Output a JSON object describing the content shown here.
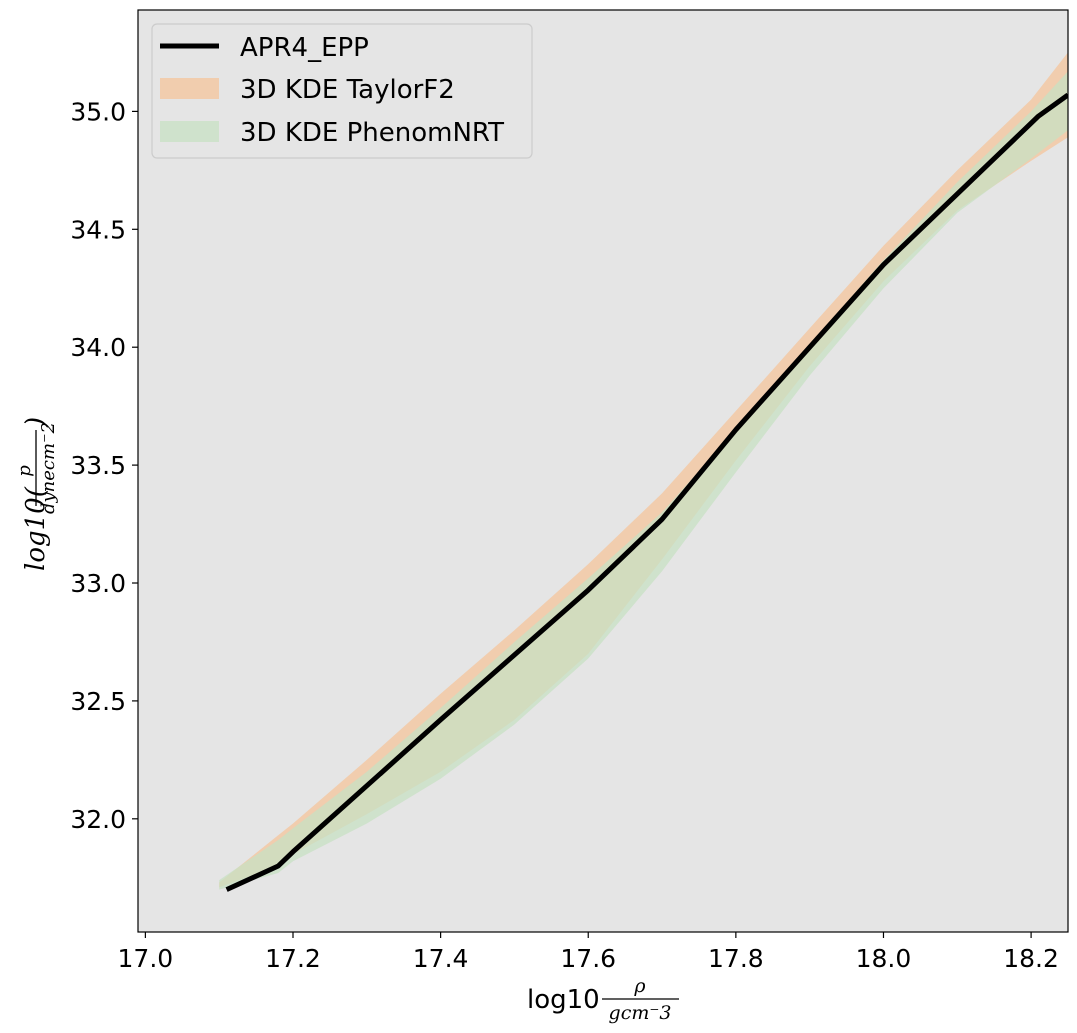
{
  "chart_data": {
    "type": "area",
    "title": "",
    "x_axis": {
      "range": [
        16.99,
        18.25
      ],
      "ticks": [
        17.0,
        17.2,
        17.4,
        17.6,
        17.8,
        18.0,
        18.2
      ],
      "tick_labels": [
        "17.0",
        "17.2",
        "17.4",
        "17.6",
        "17.8",
        "18.0",
        "18.2"
      ],
      "label": {
        "prefix": "log10",
        "numerator": "ρ",
        "denominator": "gcm⁻3"
      }
    },
    "y_axis": {
      "range": [
        31.52,
        35.43
      ],
      "ticks": [
        32.0,
        32.5,
        33.0,
        33.5,
        34.0,
        34.5,
        35.0
      ],
      "tick_labels": [
        "32.0",
        "32.5",
        "33.0",
        "33.5",
        "34.0",
        "34.5",
        "35.0"
      ],
      "label": {
        "prefix": "log10(",
        "numerator": "p",
        "denominator": "dynecm⁻2",
        "suffix": ")"
      }
    },
    "grid": false,
    "background": "#e5e5e5",
    "legend": {
      "placement": "top-left",
      "entries": [
        {
          "label": "APR4_EPP",
          "kind": "line",
          "color": "#000000"
        },
        {
          "label": "3D KDE TaylorF2",
          "kind": "band",
          "color": "#f4c49b"
        },
        {
          "label": "3D KDE PhenomNRT",
          "kind": "band",
          "color": "#c7e0c3"
        }
      ]
    },
    "series": [
      {
        "name": "APR4_EPP",
        "kind": "line",
        "color": "#000000",
        "x": [
          17.11,
          17.18,
          17.2,
          17.4,
          17.6,
          17.7,
          17.8,
          17.9,
          18.0,
          18.15,
          18.21,
          18.25
        ],
        "y": [
          31.7,
          31.8,
          31.86,
          32.42,
          32.97,
          33.27,
          33.65,
          34.0,
          34.35,
          34.8,
          34.98,
          35.07
        ]
      },
      {
        "name": "3D KDE TaylorF2",
        "kind": "band",
        "color": "#f4c49b",
        "opacity": 0.75,
        "x": [
          17.1,
          17.18,
          17.2,
          17.3,
          17.4,
          17.5,
          17.6,
          17.7,
          17.8,
          17.9,
          18.0,
          18.1,
          18.2,
          18.25
        ],
        "upper": [
          31.73,
          31.93,
          31.98,
          32.25,
          32.53,
          32.8,
          33.08,
          33.38,
          33.73,
          34.08,
          34.43,
          34.75,
          35.05,
          35.25
        ],
        "lower": [
          31.71,
          31.8,
          31.85,
          32.02,
          32.2,
          32.42,
          32.7,
          33.1,
          33.52,
          33.92,
          34.28,
          34.58,
          34.79,
          34.89
        ]
      },
      {
        "name": "3D KDE PhenomNRT",
        "kind": "band",
        "color": "#c7e0c3",
        "opacity": 0.75,
        "x": [
          17.1,
          17.18,
          17.2,
          17.3,
          17.4,
          17.5,
          17.6,
          17.7,
          17.8,
          17.9,
          18.0,
          18.1,
          18.2,
          18.25
        ],
        "upper": [
          31.74,
          31.91,
          31.96,
          32.2,
          32.47,
          32.75,
          33.02,
          33.3,
          33.65,
          34.01,
          34.37,
          34.7,
          35.0,
          35.17
        ],
        "lower": [
          31.7,
          31.77,
          31.82,
          31.98,
          32.17,
          32.4,
          32.68,
          33.05,
          33.47,
          33.88,
          34.25,
          34.57,
          34.8,
          34.92
        ]
      }
    ]
  }
}
